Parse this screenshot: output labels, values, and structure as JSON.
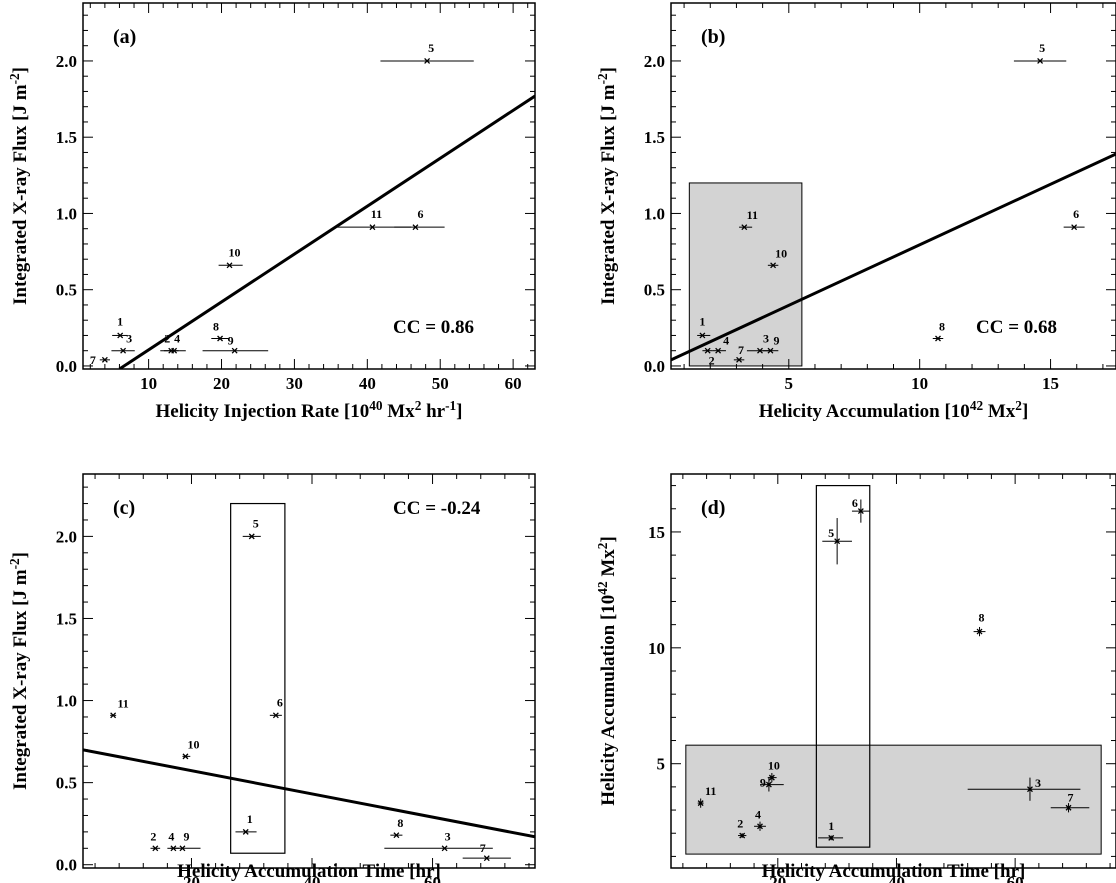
{
  "chart_data": [
    {
      "id": "a",
      "type": "scatter",
      "panel_label": "(a)",
      "xlabel": "Helicity Injection Rate [10^40 Mx^2 hr^-1]",
      "ylabel": "Integrated X-ray Flux [J m^-2]",
      "xlim": [
        1,
        63
      ],
      "ylim": [
        -0.02,
        2.38
      ],
      "xticks": [
        10,
        20,
        30,
        40,
        50,
        60
      ],
      "xtick_labels": [
        "10",
        "20",
        "30",
        "40",
        "50",
        "60"
      ],
      "yticks": [
        0,
        0.5,
        1.0,
        1.5,
        2.0
      ],
      "ytick_labels": [
        "0.0",
        "0.5",
        "1.0",
        "1.5",
        "2.0"
      ],
      "annotation": "CC = 0.86",
      "fit_line": [
        [
          6,
          -0.02
        ],
        [
          63,
          1.77
        ]
      ],
      "points": [
        {
          "label": "1",
          "x": 6.1,
          "y": 0.2,
          "xerr": [
            5.0,
            7.1
          ],
          "yerr": [
            0.2,
            0.2
          ]
        },
        {
          "label": "2",
          "x": 13.1,
          "y": 0.1,
          "xerr": [
            12.1,
            14.1
          ],
          "yerr": [
            0.1,
            0.1
          ]
        },
        {
          "label": "3",
          "x": 6.5,
          "y": 0.1,
          "xerr": [
            4.9,
            8.1
          ],
          "yerr": [
            0.1,
            0.1
          ]
        },
        {
          "label": "4",
          "x": 13.5,
          "y": 0.1,
          "xerr": [
            11.6,
            15.1
          ],
          "yerr": [
            0.1,
            0.1
          ]
        },
        {
          "label": "5",
          "x": 48.2,
          "y": 2.0,
          "xerr": [
            41.8,
            54.6
          ],
          "yerr": [
            2.0,
            2.0
          ]
        },
        {
          "label": "6",
          "x": 46.6,
          "y": 0.91,
          "xerr": [
            43.7,
            50.6
          ],
          "yerr": [
            0.91,
            0.91
          ]
        },
        {
          "label": "7",
          "x": 4.0,
          "y": 0.04,
          "xerr": [
            3.3,
            4.7
          ],
          "yerr": [
            0.04,
            0.04
          ]
        },
        {
          "label": "8",
          "x": 19.8,
          "y": 0.18,
          "xerr": [
            18.6,
            21.0
          ],
          "yerr": [
            0.18,
            0.18
          ]
        },
        {
          "label": "9",
          "x": 21.8,
          "y": 0.1,
          "xerr": [
            17.4,
            26.4
          ],
          "yerr": [
            0.1,
            0.1
          ]
        },
        {
          "label": "10",
          "x": 21.1,
          "y": 0.66,
          "xerr": [
            19.6,
            22.9
          ],
          "yerr": [
            0.66,
            0.66
          ]
        },
        {
          "label": "11",
          "x": 40.7,
          "y": 0.91,
          "xerr": [
            35.4,
            46.0
          ],
          "yerr": [
            0.91,
            0.91
          ]
        }
      ],
      "label_offsets": {
        "1": [
          0,
          -10
        ],
        "2": [
          -4,
          -8
        ],
        "3": [
          6,
          -8
        ],
        "4": [
          3,
          -8
        ],
        "5": [
          4,
          -9
        ],
        "6": [
          5,
          -9
        ],
        "7": [
          -12,
          4
        ],
        "8": [
          -4,
          -8
        ],
        "9": [
          -4,
          -6
        ],
        "10": [
          5,
          -9
        ],
        "11": [
          4,
          -9
        ]
      }
    },
    {
      "id": "b",
      "type": "scatter",
      "panel_label": "(b)",
      "xlabel": "Helicity Accumulation [10^42 Mx^2]",
      "ylabel": "Integrated X-ray Flux [J m^-2]",
      "xlim": [
        0.5,
        17.5
      ],
      "ylim": [
        -0.02,
        2.38
      ],
      "xticks": [
        5,
        10,
        15
      ],
      "xtick_labels": [
        "5",
        "10",
        "15"
      ],
      "yticks": [
        0,
        0.5,
        1.0,
        1.5,
        2.0
      ],
      "ytick_labels": [
        "0.0",
        "0.5",
        "1.0",
        "1.5",
        "2.0"
      ],
      "annotation": "CC = 0.68",
      "fit_line": [
        [
          0.5,
          0.04
        ],
        [
          17.5,
          1.39
        ]
      ],
      "shaded_box": [
        [
          1.2,
          0.0
        ],
        [
          5.5,
          1.2
        ]
      ],
      "points": [
        {
          "label": "1",
          "x": 1.7,
          "y": 0.2,
          "xerr": [
            1.5,
            2.0
          ],
          "yerr": [
            0.2,
            0.2
          ]
        },
        {
          "label": "2",
          "x": 1.9,
          "y": 0.1,
          "xerr": [
            1.7,
            2.1
          ],
          "yerr": [
            0.1,
            0.1
          ]
        },
        {
          "label": "3",
          "x": 3.9,
          "y": 0.1,
          "xerr": [
            3.4,
            4.3
          ],
          "yerr": [
            0.1,
            0.1
          ]
        },
        {
          "label": "4",
          "x": 2.3,
          "y": 0.1,
          "xerr": [
            2.1,
            2.6
          ],
          "yerr": [
            0.1,
            0.1
          ]
        },
        {
          "label": "5",
          "x": 14.6,
          "y": 2.0,
          "xerr": [
            13.6,
            15.6
          ],
          "yerr": [
            2.0,
            2.0
          ]
        },
        {
          "label": "6",
          "x": 15.9,
          "y": 0.91,
          "xerr": [
            15.5,
            16.3
          ],
          "yerr": [
            0.91,
            0.91
          ]
        },
        {
          "label": "7",
          "x": 3.1,
          "y": 0.04,
          "xerr": [
            2.9,
            3.3
          ],
          "yerr": [
            0.04,
            0.04
          ]
        },
        {
          "label": "8",
          "x": 10.7,
          "y": 0.18,
          "xerr": [
            10.5,
            10.9
          ],
          "yerr": [
            0.18,
            0.18
          ]
        },
        {
          "label": "9",
          "x": 4.3,
          "y": 0.1,
          "xerr": [
            4.0,
            4.6
          ],
          "yerr": [
            0.1,
            0.1
          ]
        },
        {
          "label": "10",
          "x": 4.4,
          "y": 0.66,
          "xerr": [
            4.2,
            4.6
          ],
          "yerr": [
            0.66,
            0.66
          ]
        },
        {
          "label": "11",
          "x": 3.3,
          "y": 0.91,
          "xerr": [
            3.1,
            3.6
          ],
          "yerr": [
            0.91,
            0.91
          ]
        }
      ],
      "label_offsets": {
        "1": [
          0,
          -10
        ],
        "2": [
          4,
          14
        ],
        "3": [
          6,
          -8
        ],
        "4": [
          8,
          -6
        ],
        "5": [
          2,
          -9
        ],
        "6": [
          2,
          -9
        ],
        "7": [
          2,
          -6
        ],
        "8": [
          4,
          -8
        ],
        "9": [
          6,
          -6
        ],
        "10": [
          8,
          -8
        ],
        "11": [
          8,
          -8
        ]
      }
    },
    {
      "id": "c",
      "type": "scatter",
      "panel_label": "(c)",
      "xlabel": "Helicity Accumulation Time [hr]",
      "ylabel": "Integrated X-ray Flux [J m^-2]",
      "xlim": [
        2,
        77
      ],
      "ylim": [
        -0.02,
        2.38
      ],
      "xticks": [
        20,
        40,
        60
      ],
      "xtick_labels": [
        "20",
        "40",
        "60"
      ],
      "yticks": [
        0,
        0.5,
        1.0,
        1.5,
        2.0
      ],
      "ytick_labels": [
        "0.0",
        "0.5",
        "1.0",
        "1.5",
        "2.0"
      ],
      "annotation": "CC = -0.24",
      "fit_line": [
        [
          2,
          0.7
        ],
        [
          77,
          0.17
        ]
      ],
      "open_box": [
        [
          26.5,
          0.07
        ],
        [
          35.5,
          2.2
        ]
      ],
      "points": [
        {
          "label": "1",
          "x": 29.0,
          "y": 0.2,
          "xerr": [
            27.3,
            30.8
          ],
          "yerr": [
            0.2,
            0.2
          ]
        },
        {
          "label": "2",
          "x": 14.0,
          "y": 0.1,
          "xerr": [
            13.2,
            14.8
          ],
          "yerr": [
            0.1,
            0.1
          ]
        },
        {
          "label": "3",
          "x": 62.0,
          "y": 0.1,
          "xerr": [
            52.0,
            70.0
          ],
          "yerr": [
            0.1,
            0.1
          ]
        },
        {
          "label": "4",
          "x": 17.0,
          "y": 0.1,
          "xerr": [
            16.0,
            18.0
          ],
          "yerr": [
            0.1,
            0.1
          ]
        },
        {
          "label": "5",
          "x": 30.0,
          "y": 2.0,
          "xerr": [
            28.5,
            31.5
          ],
          "yerr": [
            2.0,
            2.0
          ]
        },
        {
          "label": "6",
          "x": 34.0,
          "y": 0.91,
          "xerr": [
            33.0,
            35.0
          ],
          "yerr": [
            0.91,
            0.91
          ]
        },
        {
          "label": "7",
          "x": 69.0,
          "y": 0.04,
          "xerr": [
            65.0,
            73.0
          ],
          "yerr": [
            0.04,
            0.04
          ]
        },
        {
          "label": "8",
          "x": 54.0,
          "y": 0.18,
          "xerr": [
            53.0,
            55.0
          ],
          "yerr": [
            0.18,
            0.18
          ]
        },
        {
          "label": "9",
          "x": 18.5,
          "y": 0.1,
          "xerr": [
            16.5,
            21.5
          ],
          "yerr": [
            0.1,
            0.1
          ]
        },
        {
          "label": "10",
          "x": 19.0,
          "y": 0.66,
          "xerr": [
            18.5,
            19.8
          ],
          "yerr": [
            0.66,
            0.66
          ]
        },
        {
          "label": "11",
          "x": 7.0,
          "y": 0.91,
          "xerr": [
            6.5,
            7.5
          ],
          "yerr": [
            0.91,
            0.91
          ]
        }
      ],
      "label_offsets": {
        "1": [
          4,
          -9
        ],
        "2": [
          -2,
          -8
        ],
        "3": [
          3,
          -8
        ],
        "4": [
          -2,
          -8
        ],
        "5": [
          4,
          -9
        ],
        "6": [
          4,
          -9
        ],
        "7": [
          -4,
          -6
        ],
        "8": [
          4,
          -8
        ],
        "9": [
          4,
          -8
        ],
        "10": [
          8,
          -8
        ],
        "11": [
          10,
          -8
        ]
      }
    },
    {
      "id": "d",
      "type": "scatter",
      "panel_label": "(d)",
      "xlabel": "Helicity Accumulation Time [hr]",
      "ylabel": "Helicity Accumulation [10^42 Mx^2]",
      "xlim": [
        2,
        77
      ],
      "ylim": [
        0.5,
        17.5
      ],
      "xticks": [
        20,
        40,
        60
      ],
      "xtick_labels": [
        "20",
        "40",
        "60"
      ],
      "yticks": [
        5,
        10,
        15
      ],
      "ytick_labels": [
        "5",
        "10",
        "15"
      ],
      "shaded_box": [
        [
          4.5,
          1.1
        ],
        [
          74.5,
          5.8
        ]
      ],
      "open_box": [
        [
          26.5,
          1.4
        ],
        [
          35.5,
          17.0
        ]
      ],
      "points": [
        {
          "label": "1",
          "x": 29.0,
          "y": 1.8,
          "xerr": [
            26.8,
            31.0
          ],
          "yerr": [
            1.7,
            1.9
          ]
        },
        {
          "label": "2",
          "x": 14.0,
          "y": 1.9,
          "xerr": [
            13.3,
            14.7
          ],
          "yerr": [
            1.8,
            2.0
          ]
        },
        {
          "label": "3",
          "x": 62.5,
          "y": 3.9,
          "xerr": [
            52.0,
            71.0
          ],
          "yerr": [
            3.4,
            4.4
          ]
        },
        {
          "label": "4",
          "x": 17.0,
          "y": 2.3,
          "xerr": [
            16.0,
            18.0
          ],
          "yerr": [
            2.1,
            2.5
          ]
        },
        {
          "label": "5",
          "x": 30.0,
          "y": 14.6,
          "xerr": [
            27.5,
            32.5
          ],
          "yerr": [
            13.6,
            15.6
          ]
        },
        {
          "label": "6",
          "x": 34.0,
          "y": 15.9,
          "xerr": [
            32.5,
            35.5
          ],
          "yerr": [
            15.4,
            16.4
          ]
        },
        {
          "label": "7",
          "x": 69.0,
          "y": 3.1,
          "xerr": [
            66.0,
            72.5
          ],
          "yerr": [
            2.9,
            3.3
          ]
        },
        {
          "label": "8",
          "x": 54.0,
          "y": 10.7,
          "xerr": [
            53.0,
            55.0
          ],
          "yerr": [
            10.5,
            10.9
          ]
        },
        {
          "label": "9",
          "x": 18.5,
          "y": 4.1,
          "xerr": [
            17.0,
            21.0
          ],
          "yerr": [
            3.8,
            4.4
          ]
        },
        {
          "label": "10",
          "x": 19.0,
          "y": 4.4,
          "xerr": [
            18.3,
            19.8
          ],
          "yerr": [
            4.2,
            4.6
          ]
        },
        {
          "label": "11",
          "x": 7.0,
          "y": 3.3,
          "xerr": [
            6.5,
            7.5
          ],
          "yerr": [
            3.1,
            3.5
          ]
        }
      ],
      "label_offsets": {
        "1": [
          0,
          -8
        ],
        "2": [
          -2,
          -8
        ],
        "3": [
          8,
          -2
        ],
        "4": [
          -2,
          -8
        ],
        "5": [
          -6,
          -4
        ],
        "6": [
          -6,
          -4
        ],
        "7": [
          2,
          -6
        ],
        "8": [
          2,
          -10
        ],
        "9": [
          -6,
          2
        ],
        "10": [
          2,
          -8
        ],
        "11": [
          10,
          -8
        ]
      }
    }
  ]
}
